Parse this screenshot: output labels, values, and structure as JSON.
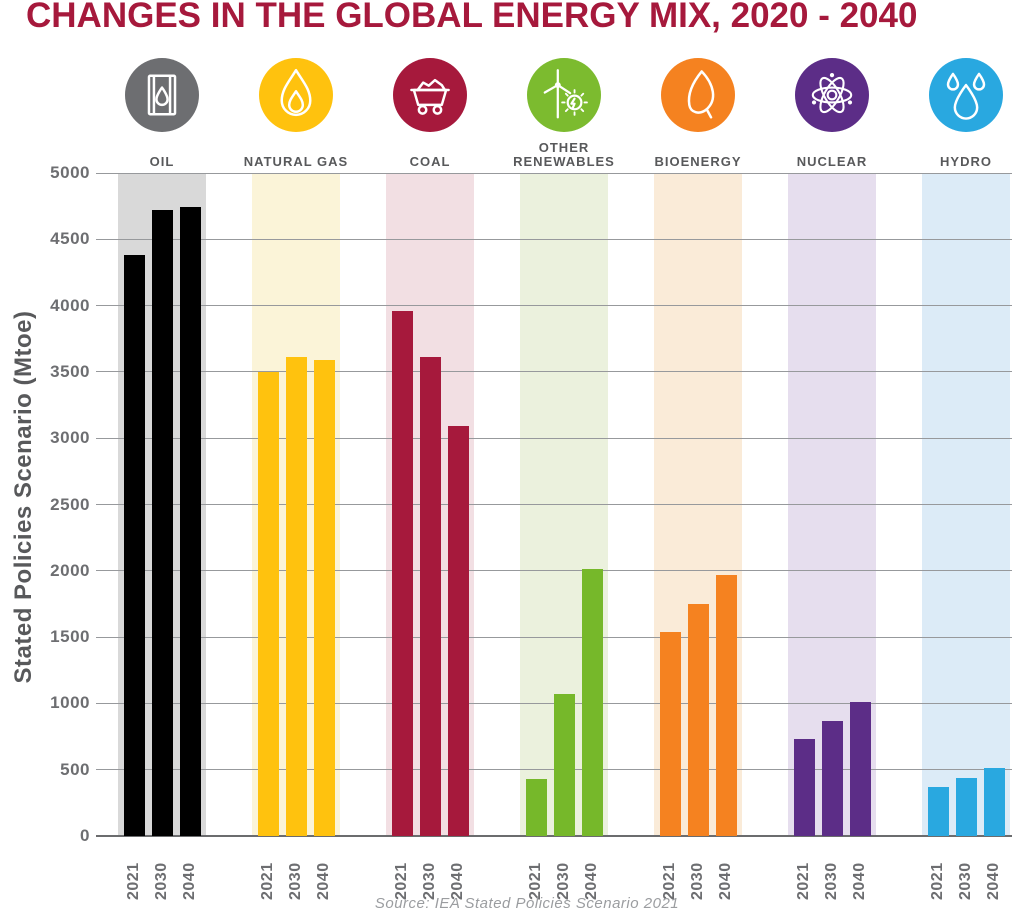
{
  "title": "CHANGES IN THE GLOBAL ENERGY MIX, 2020 - 2040",
  "y_axis_title": "Stated Policies Scenario (Mtoe)",
  "source": "Source: IEA Stated Policies Scenario 2021",
  "colors": {
    "title": "#A6193C",
    "text": "#58595B",
    "tick": "#6D6E71",
    "grid": "#97999C",
    "source": "#9B9DA0"
  },
  "chart_data": {
    "type": "bar",
    "title": "CHANGES IN THE GLOBAL ENERGY MIX, 2020 - 2040",
    "ylabel": "Stated Policies Scenario (Mtoe)",
    "xlabel": "",
    "ylim": [
      0,
      5000
    ],
    "yticks": [
      0,
      500,
      1000,
      1500,
      2000,
      2500,
      3000,
      3500,
      4000,
      4500,
      5000
    ],
    "grid": true,
    "legend_position": "none",
    "categories": [
      "2021",
      "2030",
      "2040"
    ],
    "series": [
      {
        "name": "OIL",
        "icon": "oil-barrel-icon",
        "bar_color": "#000000",
        "circle_color": "#6D6E71",
        "band_color": "#D9D9D9",
        "values": [
          4380,
          4720,
          4740
        ]
      },
      {
        "name": "NATURAL GAS",
        "icon": "flame-icon",
        "bar_color": "#FFC20E",
        "circle_color": "#FFC20E",
        "band_color": "#FBF4D8",
        "values": [
          3500,
          3610,
          3590
        ]
      },
      {
        "name": "COAL",
        "icon": "coal-cart-icon",
        "bar_color": "#A6193C",
        "circle_color": "#A6193C",
        "band_color": "#F2DFE3",
        "values": [
          3960,
          3610,
          3090
        ]
      },
      {
        "name": "OTHER RENEWABLES",
        "icon": "wind-turbine-icon",
        "bar_color": "#76B82A",
        "circle_color": "#7CBB2F",
        "band_color": "#EBF1DD",
        "values": [
          430,
          1070,
          2010
        ]
      },
      {
        "name": "BIOENERGY",
        "icon": "leaf-icon",
        "bar_color": "#F58220",
        "circle_color": "#F58220",
        "band_color": "#FAEBD8",
        "values": [
          1540,
          1750,
          1970
        ]
      },
      {
        "name": "NUCLEAR",
        "icon": "atom-icon",
        "bar_color": "#5C2D87",
        "circle_color": "#5C2D87",
        "band_color": "#E6DEEE",
        "values": [
          730,
          870,
          1010
        ]
      },
      {
        "name": "HYDRO",
        "icon": "water-drops-icon",
        "bar_color": "#29A8E0",
        "circle_color": "#29A8E0",
        "band_color": "#DCEBF7",
        "values": [
          370,
          440,
          510
        ]
      }
    ]
  }
}
